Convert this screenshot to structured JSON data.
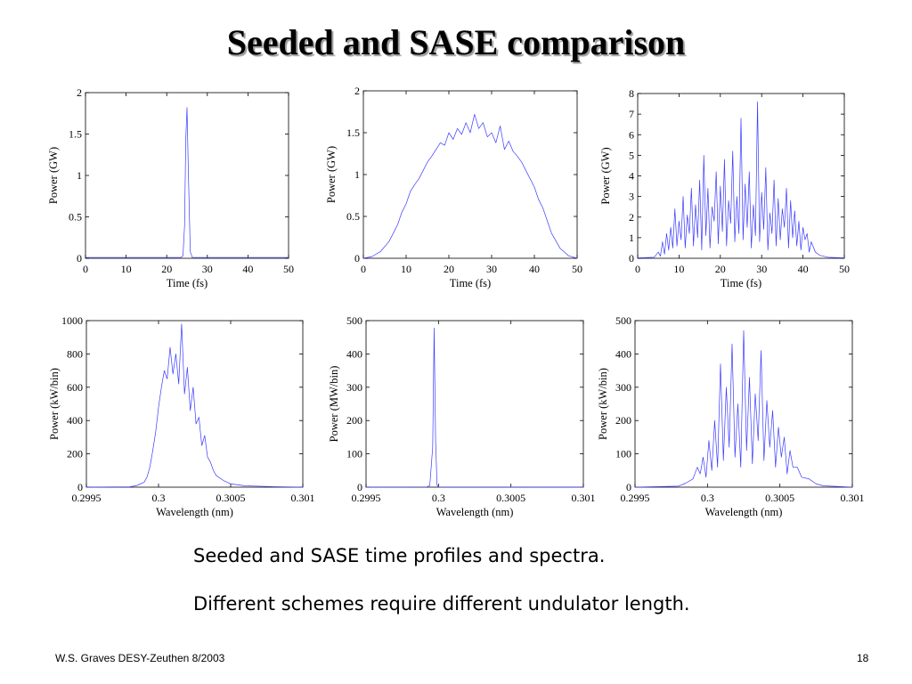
{
  "slide": {
    "title": "Seeded and SASE comparison",
    "caption_1": "Seeded and SASE time profiles and spectra.",
    "caption_2": "Different schemes require different undulator length.",
    "footer_left": "W.S. Graves DESY-Zeuthen 8/2003",
    "page_number": "18"
  },
  "series_color": "#3b3bff",
  "chart_data": [
    {
      "type": "line",
      "title": "",
      "xlabel": "Time (fs)",
      "ylabel": "Power (GW)",
      "xlim": [
        0,
        50
      ],
      "ylim": [
        0,
        2
      ],
      "xticks": [
        0,
        10,
        20,
        30,
        40,
        50
      ],
      "xtick_labels": [
        "0",
        "10",
        "20",
        "30",
        "40",
        "50"
      ],
      "yticks": [
        0,
        0.5,
        1,
        1.5,
        2
      ],
      "ytick_labels": [
        "0",
        "0.5",
        "1",
        "1.5",
        "2"
      ],
      "grid": false,
      "series": [
        {
          "x": [
            0,
            23.5,
            24.0,
            24.4,
            24.7,
            25.0,
            25.3,
            25.8,
            26.3,
            50
          ],
          "y": [
            0.01,
            0.01,
            0.03,
            0.4,
            1.45,
            1.82,
            1.1,
            0.08,
            0.01,
            0.01
          ]
        }
      ]
    },
    {
      "type": "line",
      "title": "",
      "xlabel": "Time (fs)",
      "ylabel": "Power (GW)",
      "xlim": [
        0,
        50
      ],
      "ylim": [
        0,
        2
      ],
      "xticks": [
        0,
        10,
        20,
        30,
        40,
        50
      ],
      "xtick_labels": [
        "0",
        "10",
        "20",
        "30",
        "40",
        "50"
      ],
      "yticks": [
        0,
        0.5,
        1,
        1.5,
        2
      ],
      "ytick_labels": [
        "0",
        "0.5",
        "1",
        "1.5",
        "2"
      ],
      "grid": false,
      "series": [
        {
          "x": [
            0,
            2,
            4,
            6,
            7,
            8,
            9,
            10,
            11,
            12,
            13,
            14,
            15,
            16,
            17,
            18,
            19,
            20,
            21,
            22,
            23,
            24,
            25,
            26,
            27,
            28,
            29,
            30,
            31,
            32,
            33,
            34,
            35,
            36,
            37,
            38,
            39,
            40,
            41,
            42,
            43,
            44,
            46,
            48,
            50
          ],
          "y": [
            0.0,
            0.02,
            0.08,
            0.2,
            0.3,
            0.4,
            0.55,
            0.65,
            0.8,
            0.88,
            0.95,
            1.05,
            1.15,
            1.22,
            1.3,
            1.38,
            1.35,
            1.5,
            1.42,
            1.55,
            1.48,
            1.62,
            1.5,
            1.72,
            1.55,
            1.62,
            1.45,
            1.5,
            1.38,
            1.58,
            1.3,
            1.4,
            1.28,
            1.22,
            1.15,
            1.05,
            0.95,
            0.85,
            0.7,
            0.6,
            0.45,
            0.3,
            0.12,
            0.03,
            0.0
          ]
        }
      ]
    },
    {
      "type": "line",
      "title": "",
      "xlabel": "Time (fs)",
      "ylabel": "Power (GW)",
      "xlim": [
        0,
        50
      ],
      "ylim": [
        0,
        8
      ],
      "xticks": [
        0,
        10,
        20,
        30,
        40,
        50
      ],
      "xtick_labels": [
        "0",
        "10",
        "20",
        "30",
        "40",
        "50"
      ],
      "yticks": [
        0,
        1,
        2,
        3,
        4,
        5,
        6,
        7,
        8
      ],
      "ytick_labels": [
        "0",
        "1",
        "2",
        "3",
        "4",
        "5",
        "6",
        "7",
        "8"
      ],
      "grid": false,
      "series": [
        {
          "x": [
            0,
            4,
            5,
            5.5,
            6,
            6.5,
            7,
            7.5,
            8,
            8.5,
            9,
            9.5,
            10,
            10.5,
            11,
            11.5,
            12,
            12.5,
            13,
            13.5,
            14,
            14.5,
            15,
            15.5,
            16,
            16.5,
            17,
            17.5,
            18,
            18.5,
            19,
            19.5,
            20,
            20.5,
            21,
            21.5,
            22,
            22.5,
            23,
            23.5,
            24,
            24.5,
            25,
            25.5,
            26,
            26.5,
            27,
            27.5,
            28,
            28.5,
            29,
            29.5,
            30,
            30.5,
            31,
            31.5,
            32,
            32.5,
            33,
            33.5,
            34,
            34.5,
            35,
            35.5,
            36,
            36.5,
            37,
            37.5,
            38,
            38.5,
            39,
            39.5,
            40,
            40.5,
            41,
            41.5,
            42,
            43,
            44,
            46,
            50
          ],
          "y": [
            0.02,
            0.05,
            0.3,
            0.1,
            0.8,
            0.2,
            1.2,
            0.4,
            1.5,
            0.5,
            2.4,
            0.6,
            1.8,
            0.9,
            3.0,
            0.5,
            2.1,
            1.2,
            3.4,
            0.6,
            2.6,
            1.0,
            3.8,
            0.4,
            5.0,
            1.1,
            3.4,
            0.5,
            2.5,
            1.8,
            4.2,
            0.7,
            3.5,
            1.3,
            4.8,
            0.6,
            2.8,
            1.7,
            5.2,
            0.8,
            3.0,
            1.2,
            6.8,
            0.9,
            3.6,
            1.5,
            4.2,
            0.5,
            2.6,
            1.1,
            7.6,
            0.8,
            3.2,
            1.4,
            4.4,
            0.4,
            2.2,
            1.2,
            3.8,
            0.6,
            2.9,
            0.9,
            2.4,
            1.5,
            3.4,
            0.5,
            2.8,
            1.0,
            2.3,
            0.6,
            1.8,
            0.4,
            1.5,
            0.9,
            1.2,
            0.3,
            0.8,
            0.3,
            0.15,
            0.05,
            0.02
          ]
        }
      ]
    },
    {
      "type": "line",
      "title": "",
      "xlabel": "Wavelength (nm)",
      "ylabel": "Power (kW/bin)",
      "xlim": [
        0.2995,
        0.301
      ],
      "ylim": [
        0,
        1000
      ],
      "xticks": [
        0.2995,
        0.3,
        0.3005,
        0.301
      ],
      "xtick_labels": [
        "0.2995",
        "0.3",
        "0.3005",
        "0.301"
      ],
      "yticks": [
        0,
        200,
        400,
        600,
        800,
        1000
      ],
      "ytick_labels": [
        "0",
        "200",
        "400",
        "600",
        "800",
        "1000"
      ],
      "grid": false,
      "series": [
        {
          "x": [
            0.2995,
            0.2998,
            0.29985,
            0.2999,
            0.29992,
            0.29994,
            0.29996,
            0.29998,
            0.3,
            0.30002,
            0.30004,
            0.30006,
            0.30008,
            0.3001,
            0.30012,
            0.30014,
            0.30016,
            0.30018,
            0.3002,
            0.30022,
            0.30024,
            0.30026,
            0.30028,
            0.3003,
            0.30032,
            0.30034,
            0.30036,
            0.30038,
            0.3004,
            0.30045,
            0.3005,
            0.3006,
            0.3008,
            0.301
          ],
          "y": [
            0,
            2,
            10,
            30,
            60,
            120,
            220,
            330,
            480,
            600,
            700,
            650,
            840,
            680,
            800,
            620,
            980,
            560,
            720,
            460,
            600,
            380,
            420,
            250,
            310,
            180,
            150,
            100,
            70,
            40,
            20,
            8,
            3,
            0
          ]
        }
      ]
    },
    {
      "type": "line",
      "title": "",
      "xlabel": "Wavelength (nm)",
      "ylabel": "Power (MW/bin)",
      "xlim": [
        0.2995,
        0.301
      ],
      "ylim": [
        0,
        500
      ],
      "xticks": [
        0.2995,
        0.3,
        0.3005,
        0.301
      ],
      "xtick_labels": [
        "0.2995",
        "0.3",
        "0.3005",
        "0.301"
      ],
      "yticks": [
        0,
        100,
        200,
        300,
        400,
        500
      ],
      "ytick_labels": [
        "0",
        "100",
        "200",
        "300",
        "400",
        "500"
      ],
      "grid": false,
      "series": [
        {
          "x": [
            0.2995,
            0.29992,
            0.29994,
            0.29996,
            0.29997,
            0.29998,
            0.29999,
            0.3,
            0.301
          ],
          "y": [
            0,
            0.5,
            5,
            120,
            478,
            140,
            6,
            0.5,
            0
          ]
        }
      ]
    },
    {
      "type": "line",
      "title": "",
      "xlabel": "Wavelength (nm)",
      "ylabel": "Power (kW/bin)",
      "xlim": [
        0.2995,
        0.301
      ],
      "ylim": [
        0,
        500
      ],
      "xticks": [
        0.2995,
        0.3,
        0.3005,
        0.301
      ],
      "xtick_labels": [
        "0.2995",
        "0.3",
        "0.3005",
        "0.301"
      ],
      "yticks": [
        0,
        100,
        200,
        300,
        400,
        500
      ],
      "ytick_labels": [
        "0",
        "100",
        "200",
        "300",
        "400",
        "500"
      ],
      "grid": false,
      "series": [
        {
          "x": [
            0.2995,
            0.2998,
            0.29985,
            0.2999,
            0.29993,
            0.29995,
            0.29997,
            0.29999,
            0.30001,
            0.30003,
            0.30005,
            0.30007,
            0.30009,
            0.30011,
            0.30013,
            0.30015,
            0.30017,
            0.30019,
            0.30021,
            0.30023,
            0.30025,
            0.30027,
            0.30029,
            0.30031,
            0.30033,
            0.30035,
            0.30037,
            0.30039,
            0.30041,
            0.30043,
            0.30045,
            0.30047,
            0.30049,
            0.30051,
            0.30053,
            0.30055,
            0.30057,
            0.30059,
            0.30062,
            0.30065,
            0.3007,
            0.30075,
            0.3008,
            0.301
          ],
          "y": [
            0,
            3,
            12,
            25,
            60,
            40,
            90,
            30,
            140,
            50,
            200,
            60,
            370,
            80,
            300,
            120,
            430,
            90,
            250,
            60,
            470,
            110,
            330,
            70,
            280,
            140,
            410,
            80,
            260,
            120,
            230,
            60,
            180,
            90,
            150,
            40,
            110,
            60,
            60,
            30,
            25,
            10,
            4,
            0
          ]
        }
      ]
    }
  ]
}
